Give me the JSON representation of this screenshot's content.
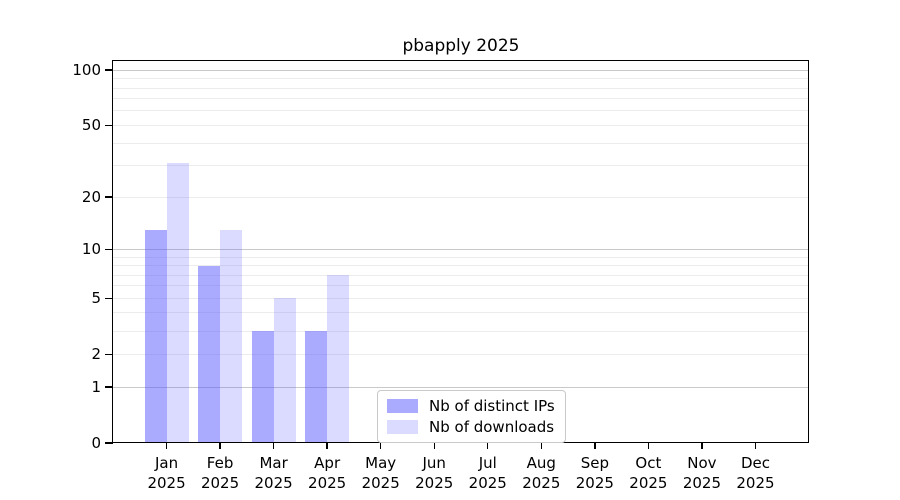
{
  "chart_data": {
    "type": "bar",
    "title": "pbapply 2025",
    "categories": [
      "Jan",
      "Feb",
      "Mar",
      "Apr",
      "May",
      "Jun",
      "Jul",
      "Aug",
      "Sep",
      "Oct",
      "Nov",
      "Dec"
    ],
    "year_label": "2025",
    "series": [
      {
        "name": "Nb of distinct IPs",
        "color": "rgba(85,85,255,0.50)",
        "values": [
          13,
          8,
          3,
          3,
          0,
          0,
          0,
          0,
          0,
          0,
          0,
          0
        ]
      },
      {
        "name": "Nb of downloads",
        "color": "rgba(85,85,255,0.21)",
        "values": [
          31,
          13,
          5,
          7,
          0,
          0,
          0,
          0,
          0,
          0,
          0,
          0
        ]
      }
    ],
    "xlabel": "",
    "ylabel": "",
    "yscale": "log10(1+x)",
    "ylim": [
      0,
      112
    ],
    "ytick_labels": [
      "100",
      "50",
      "20",
      "10",
      "5",
      "2",
      "1",
      "0"
    ],
    "ytick_values": [
      100,
      50,
      20,
      10,
      5,
      2,
      1,
      0
    ],
    "grid_minor_values": [
      2,
      3,
      4,
      5,
      6,
      7,
      8,
      9,
      20,
      30,
      40,
      50,
      60,
      70,
      80,
      90
    ],
    "grid_major_values": [
      1,
      10,
      100
    ],
    "grid_on": true,
    "legend_position": "lower center inside",
    "colors": {
      "distinct_ips_bar": "rgba(85,85,255,0.50)",
      "downloads_bar": "rgba(85,85,255,0.21)",
      "grid_minor": "#ececec",
      "grid_major": "#c9c9c9",
      "axis": "#000000",
      "background": "#ffffff"
    }
  }
}
